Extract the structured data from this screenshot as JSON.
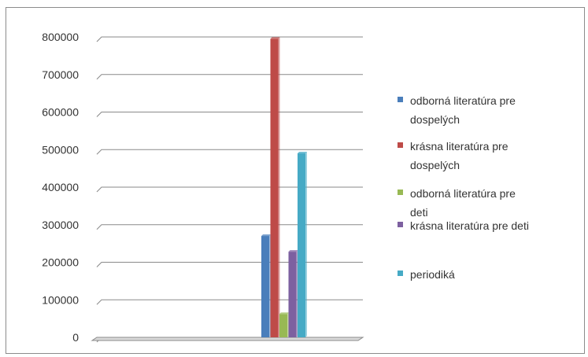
{
  "chart_data": {
    "type": "bar",
    "title": "",
    "xlabel": "",
    "ylabel": "",
    "ylim": [
      0,
      800000
    ],
    "yticks": [
      0,
      100000,
      200000,
      300000,
      400000,
      500000,
      600000,
      700000,
      800000
    ],
    "ytick_labels": [
      "0",
      "100000",
      "200000",
      "300000",
      "400000",
      "500000",
      "600000",
      "700000",
      "800000"
    ],
    "grid": true,
    "legend_position": "right",
    "series": [
      {
        "name": "odborná literatúra pre dospelých",
        "name_lines": [
          "odborná literatúra pre",
          "dospelých"
        ],
        "value": 270000,
        "color": "#4a7ebb"
      },
      {
        "name": "krásna literatúra pre dospelých",
        "name_lines": [
          "krásna literatúra pre",
          "dospelých"
        ],
        "value": 795000,
        "color": "#be4b48"
      },
      {
        "name": "odborná literatúra pre deti",
        "name_lines": [
          "odborná literatúra pre",
          "deti"
        ],
        "value": 62000,
        "color": "#98b954"
      },
      {
        "name": "krásna literatúra pre deti",
        "name_lines": [
          "krásna literatúra pre deti"
        ],
        "value": 228000,
        "color": "#7d60a0"
      },
      {
        "name": "periodiká",
        "name_lines": [
          "periodiká"
        ],
        "value": 490000,
        "color": "#46aac5"
      }
    ]
  }
}
